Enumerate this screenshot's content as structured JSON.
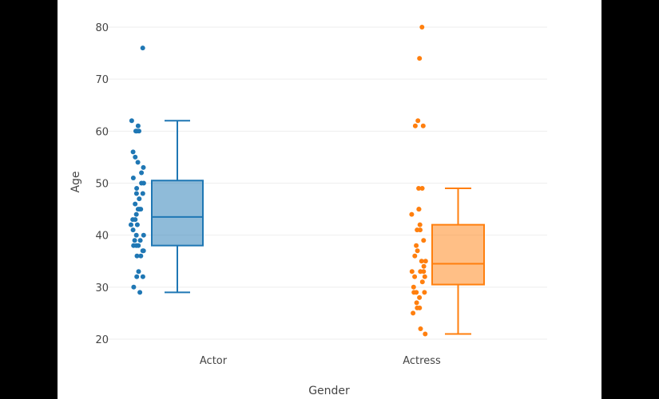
{
  "chart_data": {
    "type": "box",
    "xlabel": "Gender",
    "ylabel": "Age",
    "ylim": [
      18.5,
      82
    ],
    "yticks": [
      20,
      30,
      40,
      50,
      60,
      70,
      80
    ],
    "categories": [
      "Actor",
      "Actress"
    ],
    "grid": "horizontal",
    "series": [
      {
        "name": "Actor",
        "color": "#1f77b4",
        "box": {
          "lower_fence": 29,
          "q1": 38,
          "median": 43.5,
          "q3": 50.5,
          "upper_fence": 62
        },
        "points": [
          76,
          62,
          61,
          60,
          60,
          60,
          56,
          55,
          54,
          53,
          52,
          51,
          50,
          50,
          49,
          48,
          48,
          47,
          46,
          45,
          45,
          45,
          44,
          43,
          43,
          42,
          42,
          41,
          40,
          40,
          39,
          39,
          38,
          38,
          38,
          37,
          37,
          36,
          36,
          33,
          32,
          32,
          30,
          29
        ]
      },
      {
        "name": "Actress",
        "color": "#ff7f0e",
        "box": {
          "lower_fence": 21,
          "q1": 30.5,
          "median": 34.5,
          "q3": 42,
          "upper_fence": 49
        },
        "points": [
          80,
          74,
          62,
          61,
          61,
          49,
          49,
          45,
          45,
          44,
          42,
          41,
          41,
          39,
          38,
          37,
          36,
          35,
          35,
          34,
          33,
          33,
          33,
          32,
          32,
          31,
          30,
          29,
          29,
          29,
          28,
          27,
          26,
          26,
          25,
          22,
          21
        ]
      }
    ]
  }
}
